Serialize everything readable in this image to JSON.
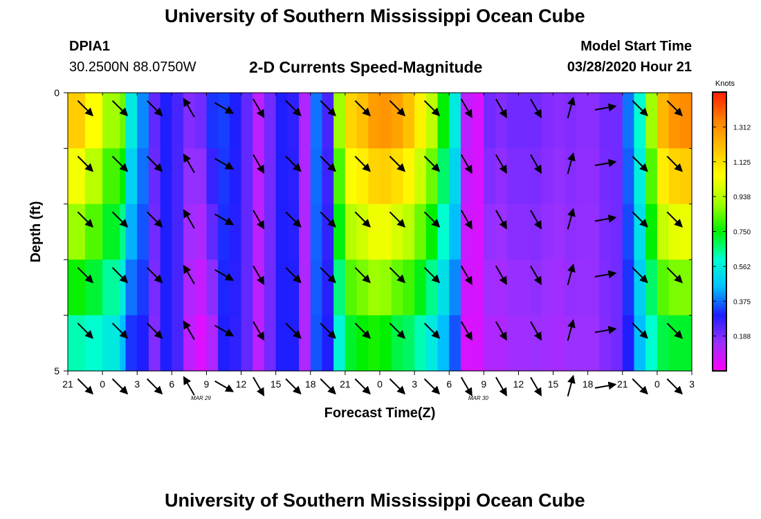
{
  "header": {
    "title": "University of Southern Mississippi Ocean Cube",
    "station_id": "DPIA1",
    "coordinates": "30.2500N 88.0750W",
    "subtitle": "2-D Currents Speed-Magnitude",
    "model_start_label": "Model Start Time",
    "model_start_value": "03/28/2020 Hour 21"
  },
  "footer": {
    "title": "University of Southern Mississippi Ocean Cube"
  },
  "chart_data": {
    "type": "heatmap",
    "xlabel": "Forecast Time(Z)",
    "ylabel": "Depth (ft)",
    "x_tick_labels": [
      "21",
      "0",
      "3",
      "6",
      "9",
      "12",
      "15",
      "18",
      "21",
      "0",
      "3",
      "6",
      "9",
      "12",
      "15",
      "18",
      "21",
      "0",
      "3"
    ],
    "date_labels": [
      {
        "label": "MAR 29",
        "at_tick": 4
      },
      {
        "label": "MAR 30",
        "at_tick": 12
      }
    ],
    "y_tick_labels": [
      "0",
      "5"
    ],
    "ylim": [
      0,
      5
    ],
    "x_hours_from_start": [
      0,
      54
    ],
    "depth_rows": 5,
    "colorbar": {
      "unit": "Knots",
      "tick_labels": [
        "1.312",
        "1.125",
        "0.938",
        "0.750",
        "0.562",
        "0.375",
        "0.188"
      ],
      "tick_values": [
        1.312,
        1.125,
        0.938,
        0.75,
        0.562,
        0.375,
        0.188
      ],
      "range": [
        0,
        1.5
      ],
      "colors": [
        "#ff00ff",
        "#9b30ff",
        "#1e1eff",
        "#00bfff",
        "#00ffd0",
        "#00f000",
        "#a0ff00",
        "#ffff00",
        "#ffc000",
        "#ff7f00",
        "#ff1e00"
      ]
    },
    "speed_profile": {
      "hours": [
        0,
        1.5,
        3,
        4.5,
        5,
        6,
        7,
        8,
        9,
        10,
        11,
        12,
        13,
        14,
        15,
        16,
        17,
        18,
        19,
        20,
        21,
        22,
        23,
        24,
        25,
        26,
        27,
        28,
        29,
        30,
        31,
        32,
        33,
        34,
        35,
        36,
        37,
        38,
        39,
        40,
        41,
        42,
        43,
        44,
        45,
        46,
        47,
        48,
        49,
        50,
        51,
        52,
        53,
        54
      ],
      "surface": [
        1.17,
        1.05,
        0.9,
        0.85,
        0.55,
        0.4,
        0.22,
        0.3,
        0.25,
        0.18,
        0.2,
        0.32,
        0.33,
        0.3,
        0.22,
        0.1,
        0.2,
        0.3,
        0.28,
        0.12,
        0.38,
        0.25,
        0.9,
        1.15,
        1.2,
        1.28,
        1.3,
        1.27,
        1.2,
        1.08,
        0.95,
        0.75,
        0.55,
        0.1,
        0.06,
        0.2,
        0.18,
        0.2,
        0.2,
        0.2,
        0.18,
        0.17,
        0.18,
        0.17,
        0.17,
        0.2,
        0.2,
        0.38,
        0.6,
        0.9,
        1.22,
        1.3,
        1.32,
        1.25
      ],
      "bottom": [
        0.62,
        0.6,
        0.55,
        0.45,
        0.32,
        0.3,
        0.18,
        0.3,
        0.25,
        0.1,
        0.05,
        0.12,
        0.3,
        0.28,
        0.22,
        0.1,
        0.2,
        0.3,
        0.3,
        0.12,
        0.35,
        0.3,
        0.58,
        0.72,
        0.75,
        0.77,
        0.75,
        0.7,
        0.68,
        0.62,
        0.55,
        0.45,
        0.35,
        0.06,
        0.06,
        0.12,
        0.12,
        0.14,
        0.14,
        0.15,
        0.14,
        0.13,
        0.15,
        0.15,
        0.15,
        0.18,
        0.2,
        0.3,
        0.45,
        0.6,
        0.7,
        0.72,
        0.72,
        0.7
      ]
    },
    "vectors": {
      "hours": [
        1.5,
        4.5,
        7.5,
        10.5,
        13.5,
        16.5,
        19.5,
        22.5,
        25.5,
        28.5,
        31.5,
        34.5,
        37.5,
        40.5,
        43.5,
        46.5,
        49.5,
        52.5
      ],
      "direction_deg": [
        135,
        135,
        135,
        330,
        120,
        150,
        135,
        135,
        135,
        135,
        135,
        150,
        150,
        150,
        15,
        80,
        135,
        135
      ],
      "depth_rows_drawn": [
        0,
        1,
        2,
        3,
        4,
        5
      ]
    }
  }
}
